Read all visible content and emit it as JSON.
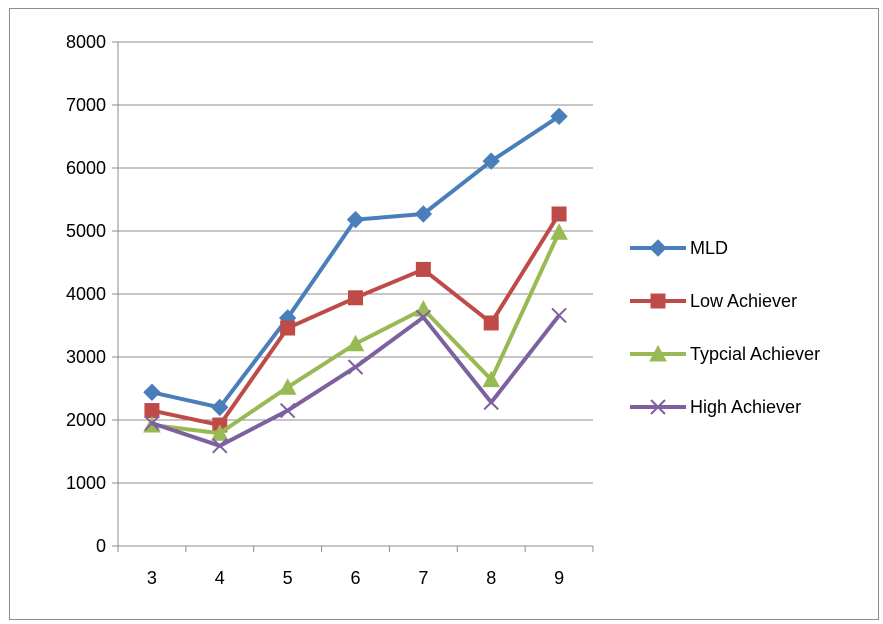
{
  "chart_data": {
    "type": "line",
    "categories": [
      "3",
      "4",
      "5",
      "6",
      "7",
      "8",
      "9"
    ],
    "ylim": [
      0,
      8000
    ],
    "yticks": [
      0,
      1000,
      2000,
      3000,
      4000,
      5000,
      6000,
      7000,
      8000
    ],
    "grid": "horizontal",
    "legend_position": "right",
    "series": [
      {
        "name": "MLD",
        "color": "#4a7ebb",
        "marker": "diamond",
        "values": [
          2440,
          2200,
          3620,
          5180,
          5270,
          6110,
          6820
        ]
      },
      {
        "name": "Low Achiever",
        "color": "#be4b48",
        "marker": "square",
        "values": [
          2150,
          1920,
          3460,
          3940,
          4390,
          3540,
          5270
        ]
      },
      {
        "name": "Typcial Achiever",
        "color": "#98b954",
        "marker": "triangle",
        "values": [
          1920,
          1790,
          2520,
          3210,
          3760,
          2640,
          4980
        ]
      },
      {
        "name": "High Achiever",
        "color": "#7d60a0",
        "marker": "x",
        "values": [
          1950,
          1590,
          2150,
          2840,
          3630,
          2280,
          3660
        ]
      }
    ]
  }
}
